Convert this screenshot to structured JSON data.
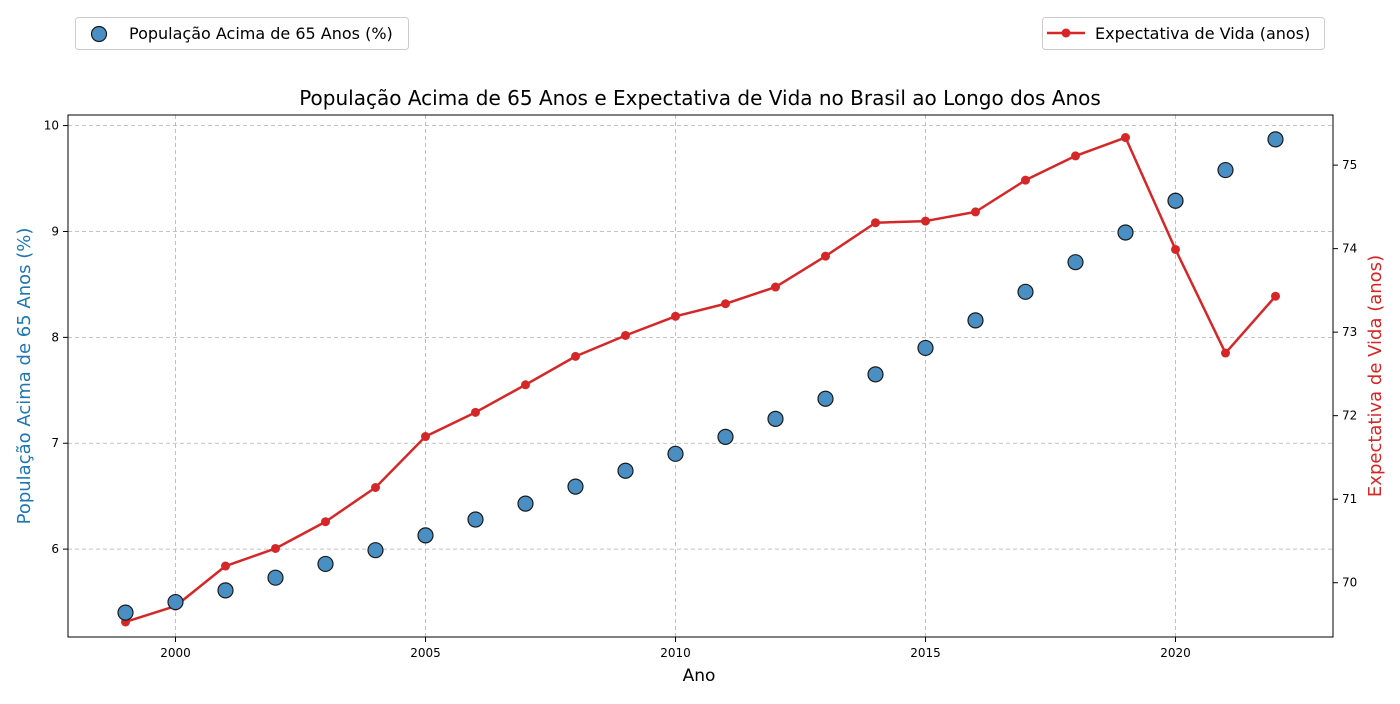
{
  "chart_data": {
    "type": "scatter+line",
    "title": "População Acima de 65 Anos e Expectativa de Vida no Brasil ao Longo dos Anos",
    "xlabel": "Ano",
    "ylabel_left": "População Acima de 65 Anos (%)",
    "ylabel_right": "Expectativa de Vida (anos)",
    "xlim": [
      1997.85,
      2023.15
    ],
    "ylim_left": [
      5.17,
      10.1
    ],
    "ylim_right": [
      69.35,
      75.6
    ],
    "xticks": [
      "2000",
      "2005",
      "2010",
      "2015",
      "2020"
    ],
    "yticks_left": [
      "6",
      "7",
      "8",
      "9",
      "10"
    ],
    "yticks_right": [
      "70",
      "71",
      "72",
      "73",
      "74",
      "75"
    ],
    "grid": true,
    "x": [
      1999,
      2000,
      2001,
      2002,
      2003,
      2004,
      2005,
      2006,
      2007,
      2008,
      2009,
      2010,
      2011,
      2012,
      2013,
      2014,
      2015,
      2016,
      2017,
      2018,
      2019,
      2020,
      2021,
      2022
    ],
    "series": [
      {
        "name": "População Acima de 65 Anos (%)",
        "type": "scatter",
        "axis": "left",
        "color": "#1f77b4",
        "values": [
          5.4,
          5.5,
          5.61,
          5.73,
          5.86,
          5.99,
          6.13,
          6.28,
          6.43,
          6.59,
          6.74,
          6.9,
          7.06,
          7.23,
          7.42,
          7.65,
          7.9,
          8.16,
          8.43,
          8.71,
          8.99,
          9.29,
          9.58,
          9.87
        ]
      },
      {
        "name": "Expectativa de Vida (anos)",
        "type": "line",
        "axis": "right",
        "color": "#d62728",
        "values": [
          69.53,
          69.72,
          70.2,
          70.41,
          70.73,
          71.14,
          71.75,
          72.04,
          72.37,
          72.71,
          72.96,
          73.19,
          73.34,
          73.54,
          73.91,
          74.31,
          74.33,
          74.44,
          74.82,
          75.11,
          75.33,
          73.99,
          72.75,
          73.43
        ]
      }
    ],
    "legend": [
      {
        "label": "População Acima de 65 Anos (%)",
        "placement": "top-left",
        "marker": "circle"
      },
      {
        "label": "Expectativa de Vida (anos)",
        "placement": "top-right",
        "marker": "line"
      }
    ]
  }
}
